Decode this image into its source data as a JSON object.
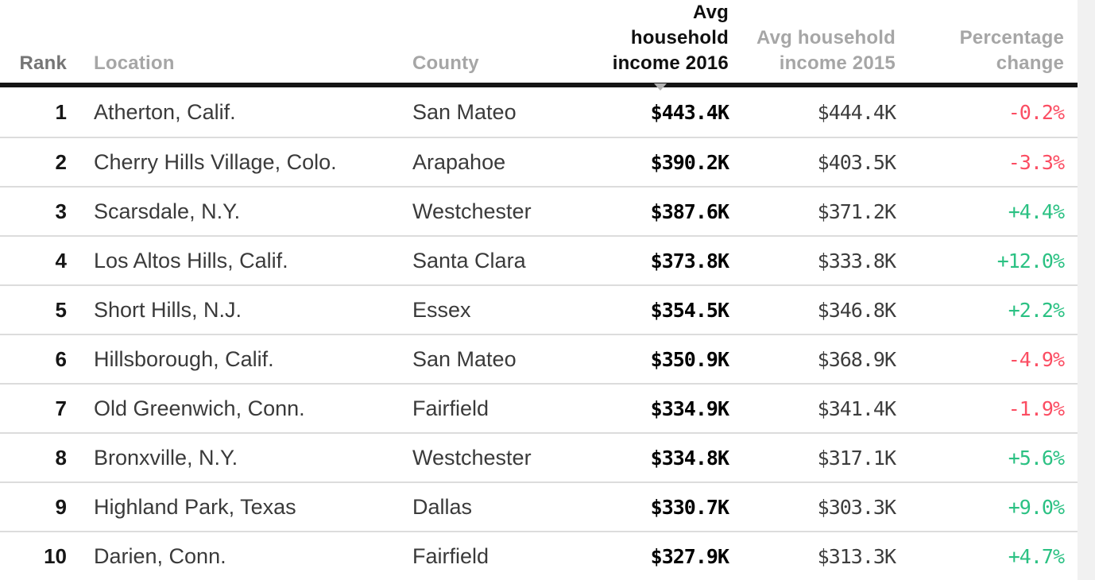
{
  "table": {
    "sorted_by": "Avg household income 2016",
    "sort_direction": "descending",
    "colors": {
      "positive_change": "#2bc183",
      "negative_change": "#fb4d62",
      "header_rule": "#151515",
      "row_divider": "#dcdcdc"
    },
    "headers": {
      "rank": "Rank",
      "location": "Location",
      "county": "County",
      "income2016": "Avg household income 2016",
      "income2015": "Avg household income 2015",
      "change": "Percentage change"
    },
    "rows": [
      {
        "rank": "1",
        "location": "Atherton, Calif.",
        "county": "San Mateo",
        "income2016": "$443.4K",
        "income2015": "$444.4K",
        "change": "-0.2%"
      },
      {
        "rank": "2",
        "location": "Cherry Hills Village, Colo.",
        "county": "Arapahoe",
        "income2016": "$390.2K",
        "income2015": "$403.5K",
        "change": "-3.3%"
      },
      {
        "rank": "3",
        "location": "Scarsdale, N.Y.",
        "county": "Westchester",
        "income2016": "$387.6K",
        "income2015": "$371.2K",
        "change": "+4.4%"
      },
      {
        "rank": "4",
        "location": "Los Altos Hills, Calif.",
        "county": "Santa Clara",
        "income2016": "$373.8K",
        "income2015": "$333.8K",
        "change": "+12.0%"
      },
      {
        "rank": "5",
        "location": "Short Hills, N.J.",
        "county": "Essex",
        "income2016": "$354.5K",
        "income2015": "$346.8K",
        "change": "+2.2%"
      },
      {
        "rank": "6",
        "location": "Hillsborough, Calif.",
        "county": "San Mateo",
        "income2016": "$350.9K",
        "income2015": "$368.9K",
        "change": "-4.9%"
      },
      {
        "rank": "7",
        "location": "Old Greenwich, Conn.",
        "county": "Fairfield",
        "income2016": "$334.9K",
        "income2015": "$341.4K",
        "change": "-1.9%"
      },
      {
        "rank": "8",
        "location": "Bronxville, N.Y.",
        "county": "Westchester",
        "income2016": "$334.8K",
        "income2015": "$317.1K",
        "change": "+5.6%"
      },
      {
        "rank": "9",
        "location": "Highland Park, Texas",
        "county": "Dallas",
        "income2016": "$330.7K",
        "income2015": "$303.3K",
        "change": "+9.0%"
      },
      {
        "rank": "10",
        "location": "Darien, Conn.",
        "county": "Fairfield",
        "income2016": "$327.9K",
        "income2015": "$313.3K",
        "change": "+4.7%"
      }
    ]
  }
}
